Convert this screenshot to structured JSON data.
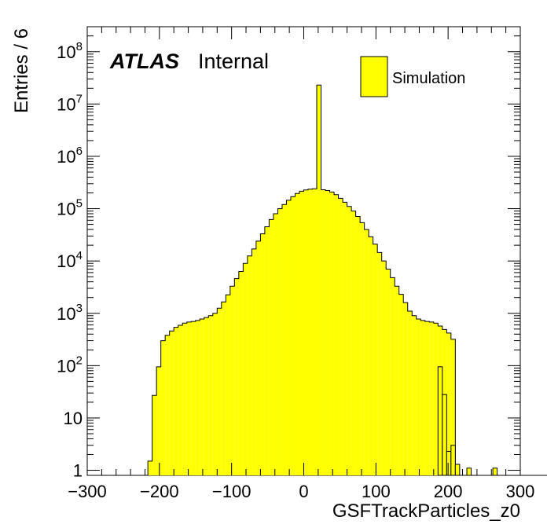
{
  "chart_data": {
    "type": "histogram",
    "xlabel": "GSFTrackParticles_z0",
    "ylabel": "Entries / 6",
    "xlim": [
      -300,
      300
    ],
    "ylim": [
      0.8,
      300000000.0
    ],
    "y_scale": "log",
    "x_ticks": [
      "−300",
      "−200",
      "−100",
      "0",
      "100",
      "200",
      "300"
    ],
    "x_tick_values": [
      -300,
      -200,
      -100,
      0,
      100,
      200,
      300
    ],
    "y_ticks": [
      {
        "value": 1,
        "base": "1",
        "exp": ""
      },
      {
        "value": 10,
        "base": "10",
        "exp": ""
      },
      {
        "value": 100,
        "base": "10",
        "exp": "2"
      },
      {
        "value": 1000,
        "base": "10",
        "exp": "3"
      },
      {
        "value": 10000,
        "base": "10",
        "exp": "4"
      },
      {
        "value": 100000,
        "base": "10",
        "exp": "5"
      },
      {
        "value": 1000000,
        "base": "10",
        "exp": "6"
      },
      {
        "value": 10000000,
        "base": "10",
        "exp": "7"
      },
      {
        "value": 100000000,
        "base": "10",
        "exp": "8"
      }
    ],
    "bin_width": 6,
    "bin_start": -300,
    "values": [
      0,
      0,
      0,
      0,
      0,
      0,
      0,
      0,
      0,
      0,
      0,
      0,
      0,
      0,
      1.5,
      27,
      95,
      300,
      380,
      460,
      540,
      590,
      650,
      680,
      700,
      730,
      780,
      830,
      900,
      1000,
      1250,
      1650,
      2250,
      3300,
      4600,
      6300,
      9000,
      12500,
      17000,
      24000,
      33000,
      45000,
      62000,
      80000,
      100000,
      120000,
      145000,
      170000,
      195000,
      215000,
      228000,
      236000,
      240000,
      23000000,
      230000,
      222000,
      208000,
      185000,
      158000,
      133000,
      110000,
      90000,
      71000,
      54000,
      40000,
      29000,
      21000,
      14500,
      10000,
      7000,
      4800,
      3300,
      2300,
      1600,
      1100,
      900,
      780,
      730,
      700,
      680,
      650,
      570,
      490,
      420,
      320,
      0,
      0,
      0,
      0,
      0,
      0,
      0,
      0,
      0,
      0,
      0,
      0,
      0,
      0,
      0,
      0,
      0,
      0,
      0,
      0,
      0,
      0,
      0,
      0,
      0,
      0
    ],
    "tail_values": [
      {
        "x": 186,
        "value": 95
      },
      {
        "x": 192,
        "value": 28
      },
      {
        "x": 198,
        "value": 2.3
      },
      {
        "x": 204,
        "value": 3
      },
      {
        "x": 210,
        "value": 1.3
      },
      {
        "x": 226,
        "value": 1.1
      },
      {
        "x": 262,
        "value": 1.1
      }
    ],
    "fill_color": "#ffff00",
    "line_color": "#000000"
  },
  "labels": {
    "experiment": "ATLAS",
    "status": "Internal",
    "legend_entry": "Simulation"
  }
}
